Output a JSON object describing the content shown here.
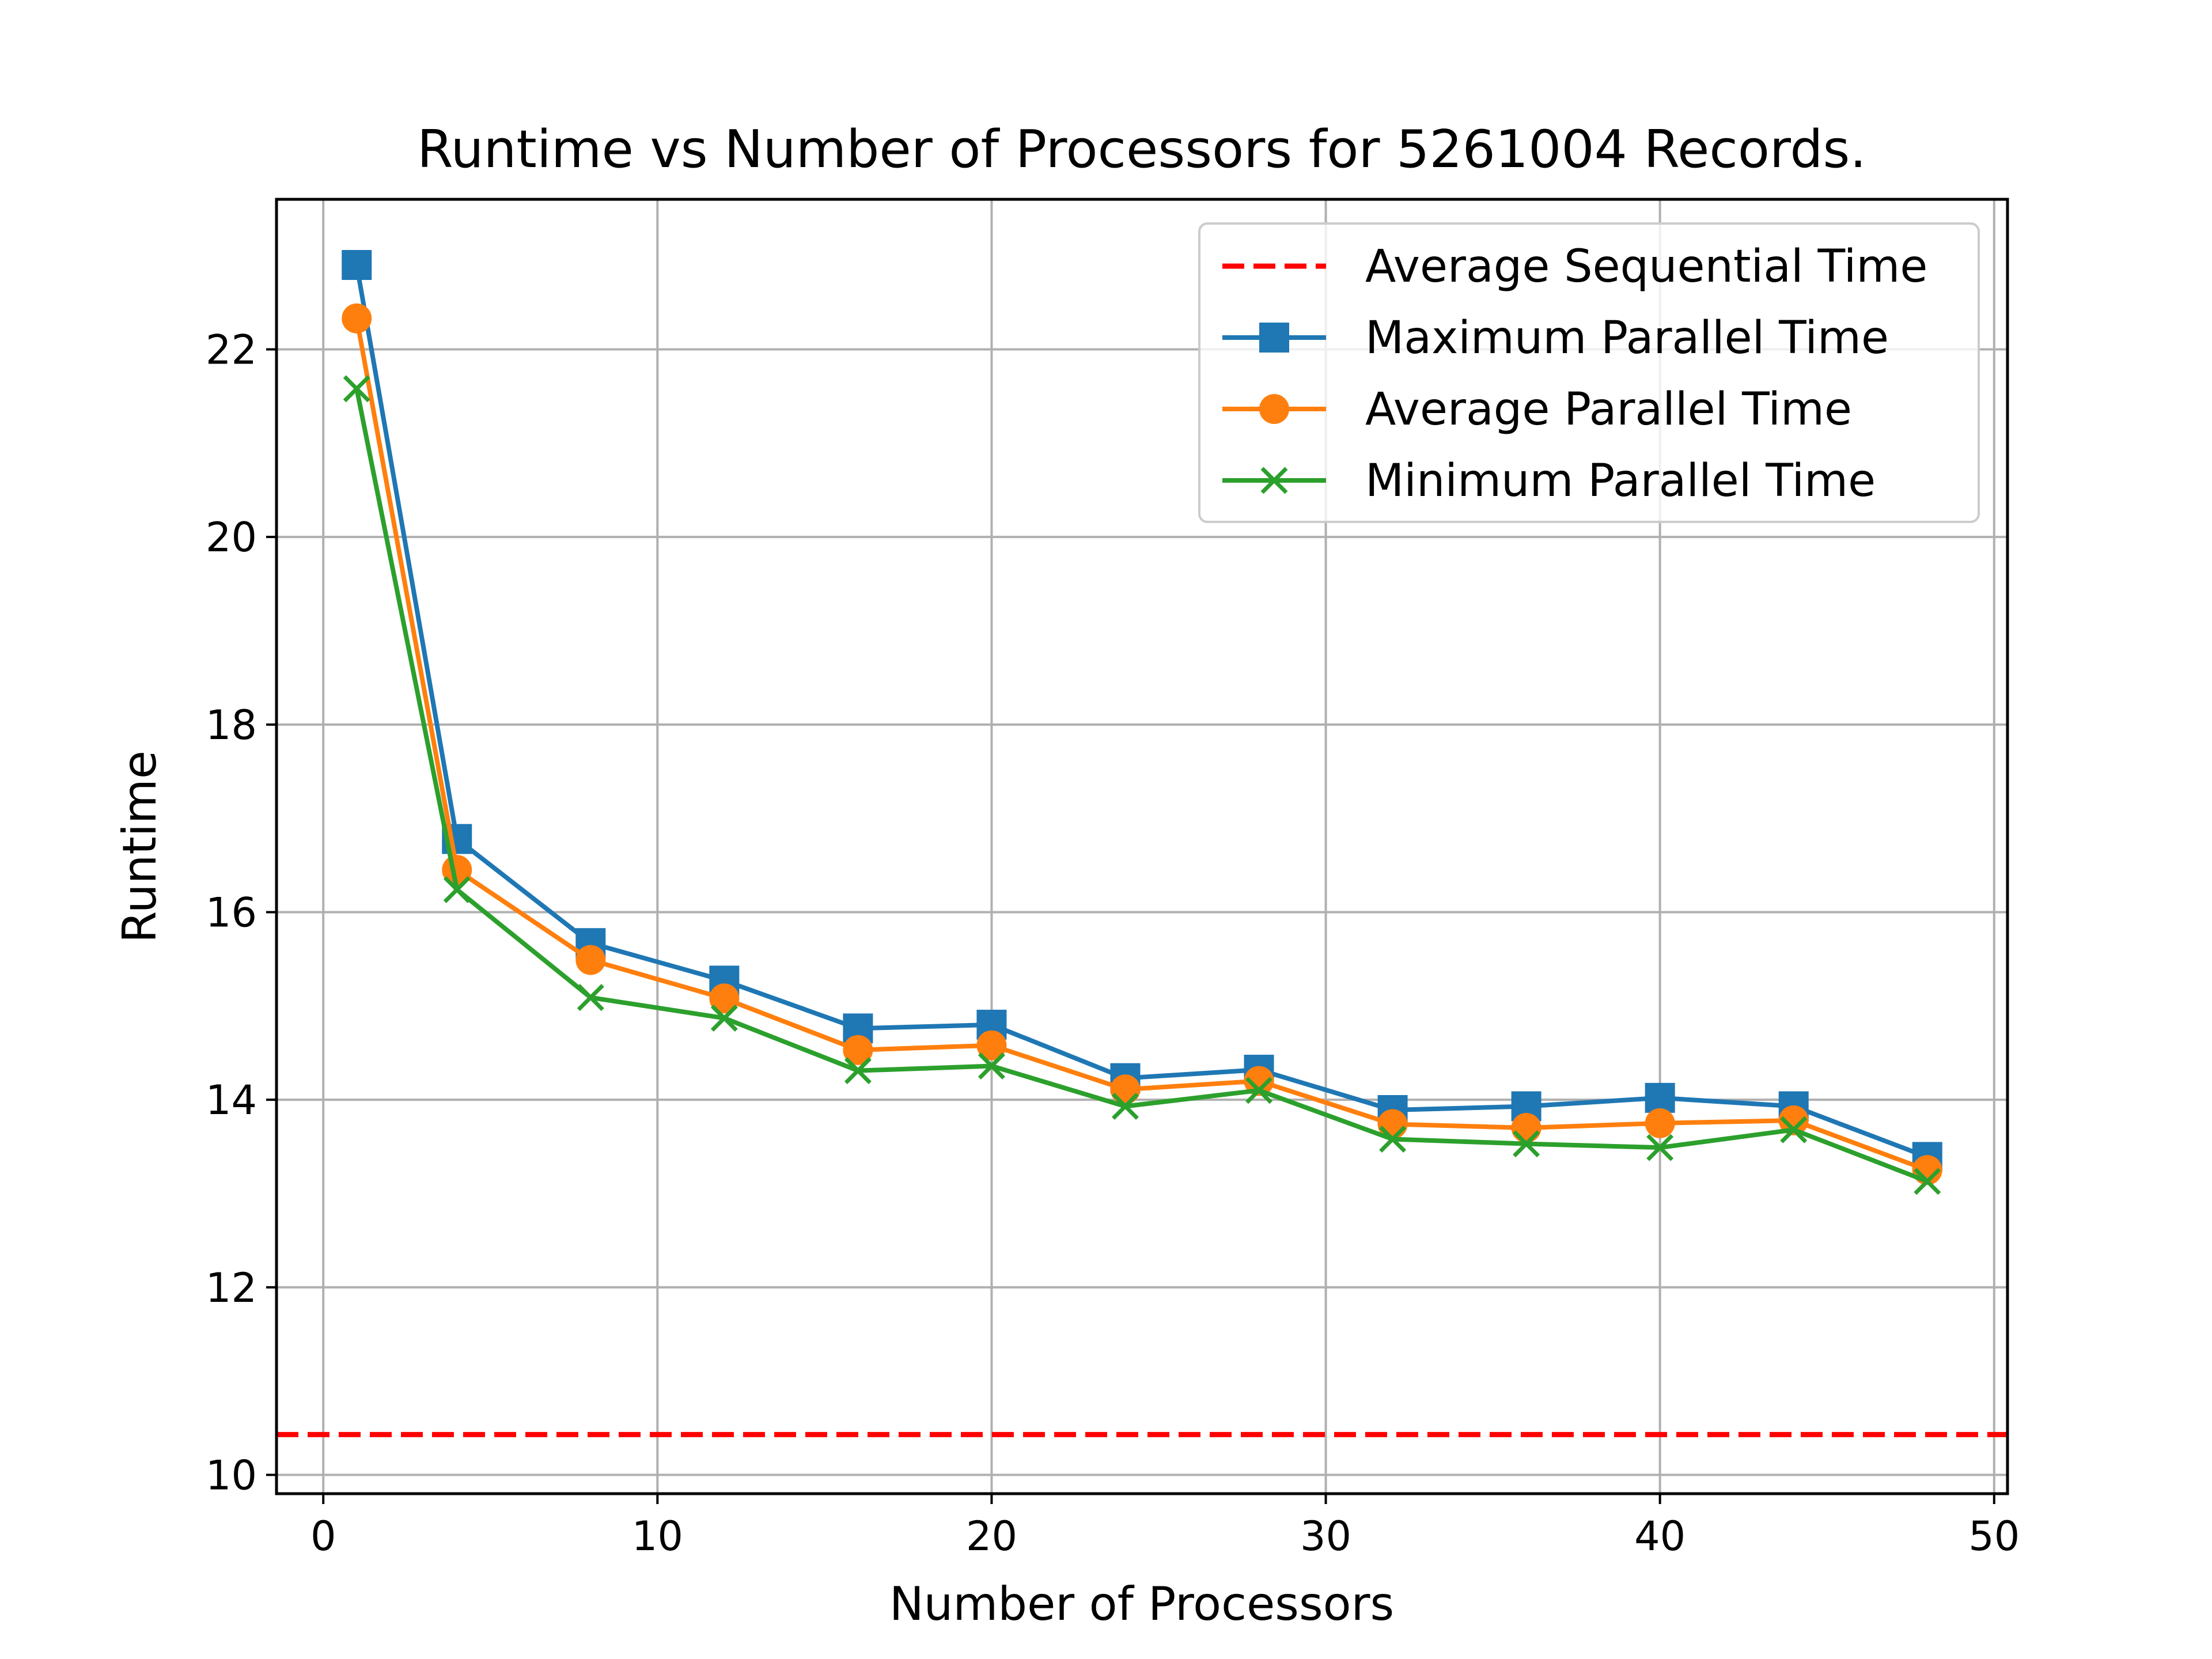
{
  "chart_data": {
    "type": "line",
    "title": "Runtime vs Number of Processors for 5261004 Records.",
    "xlabel": "Number of Processors",
    "ylabel": "Runtime",
    "xlim": [
      -1.4,
      50.4
    ],
    "ylim": [
      9.8,
      23.6
    ],
    "xticks": [
      0,
      10,
      20,
      30,
      40,
      50
    ],
    "yticks": [
      10,
      12,
      14,
      16,
      18,
      20,
      22
    ],
    "grid": true,
    "legend_position": "top-right",
    "x": [
      1,
      4,
      8,
      12,
      16,
      20,
      24,
      28,
      32,
      36,
      40,
      44,
      48
    ],
    "reference_line": {
      "name": "Average Sequential Time",
      "y": 10.43,
      "color": "#ff0000",
      "style": "dashed"
    },
    "series": [
      {
        "name": "Maximum Parallel Time",
        "color": "#1f77b4",
        "marker": "square",
        "values": [
          22.9,
          16.78,
          15.67,
          15.27,
          14.76,
          14.8,
          14.23,
          14.32,
          13.89,
          13.93,
          14.02,
          13.93,
          13.39
        ]
      },
      {
        "name": "Average Parallel Time",
        "color": "#ff7f0e",
        "marker": "circle",
        "values": [
          22.33,
          16.45,
          15.49,
          15.08,
          14.53,
          14.58,
          14.11,
          14.2,
          13.74,
          13.7,
          13.75,
          13.78,
          13.25
        ]
      },
      {
        "name": "Minimum Parallel Time",
        "color": "#2ca02c",
        "marker": "x",
        "values": [
          21.58,
          16.24,
          15.09,
          14.87,
          14.31,
          14.36,
          13.93,
          14.1,
          13.58,
          13.53,
          13.49,
          13.68,
          13.13
        ]
      }
    ]
  }
}
